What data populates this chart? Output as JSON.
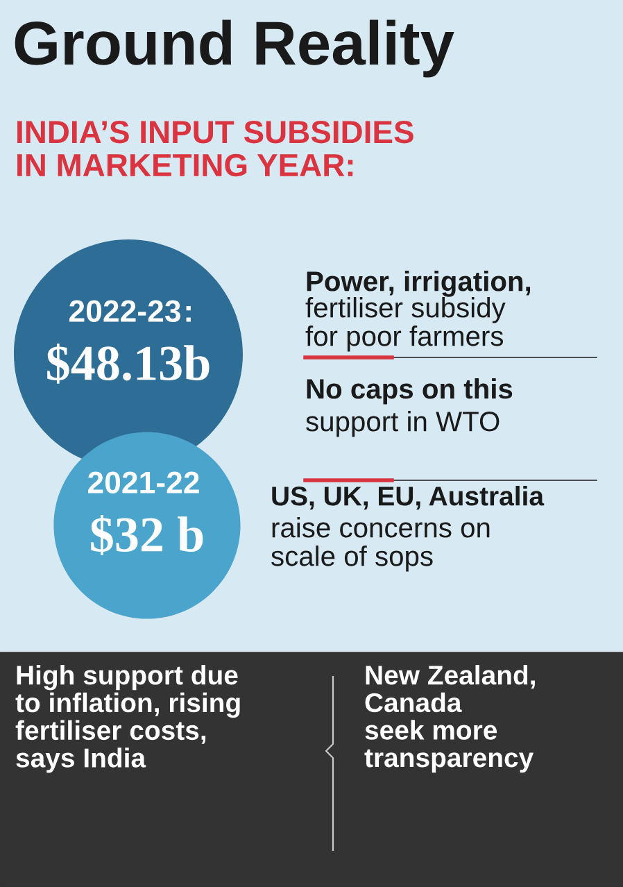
{
  "chart_data": {
    "type": "other",
    "title": "Ground Reality",
    "subtitle": "INDIA’S INPUT SUBSIDIES\nIN MARKETING YEAR:",
    "categories": [
      "2022-23",
      "2021-22"
    ],
    "values": [
      48.13,
      32
    ],
    "value_labels": [
      "$48.13b",
      "$32 b"
    ],
    "colors": [
      "#2e6e96",
      "#4ba4cb"
    ],
    "annotations": [
      "Power, irrigation,",
      "fertiliser subsidy\nfor poor farmers",
      "No caps on this",
      "support in WTO",
      "US, UK, EU, Australia",
      "raise concerns on\nscale of sops",
      "High support due\nto inflation, rising\nfertiliser costs,\nsays India",
      "New Zealand,\nCanada\nseek more\ntransparency",
      ":"
    ]
  }
}
